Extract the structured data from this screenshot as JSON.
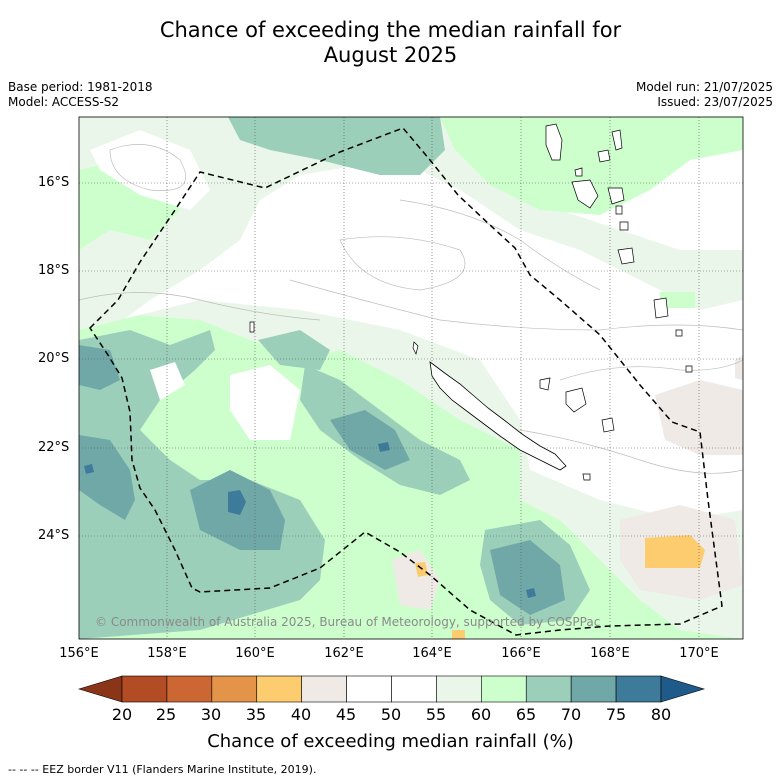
{
  "title_line1": "Chance of exceeding the median rainfall for",
  "title_line2": "August 2025",
  "meta_left": [
    "Base period: 1981-2018",
    "Model: ACCESS-S2"
  ],
  "meta_right": [
    "Model run: 21/07/2025",
    "Issued: 23/07/2025"
  ],
  "lat_labels": [
    "16°S",
    "18°S",
    "20°S",
    "22°S",
    "24°S"
  ],
  "lon_labels": [
    "156°E",
    "158°E",
    "160°E",
    "162°E",
    "164°E",
    "166°E",
    "168°E",
    "170°E"
  ],
  "copyright": "© Commonwealth of Australia 2025, Bureau of Meteorology, supported by COSPPac",
  "colorbar": {
    "ticks": [
      "20",
      "25",
      "30",
      "35",
      "40",
      "45",
      "50",
      "55",
      "60",
      "65",
      "70",
      "75",
      "80"
    ],
    "colors": [
      "#b14c24",
      "#cc6633",
      "#e39449",
      "#fdcc6e",
      "#efeae6",
      "#ffffff",
      "#ffffff",
      "#ebf6ea",
      "#ccffcc",
      "#9ccfba",
      "#70a8a8",
      "#3e7a99"
    ],
    "under_color": "#8b3518",
    "over_color": "#1e5a8a",
    "label": "Chance of exceeding median rainfall (%)"
  },
  "footnote": "--  --  -- EEZ border V11 (Flanders Marine Institute, 2019)."
}
